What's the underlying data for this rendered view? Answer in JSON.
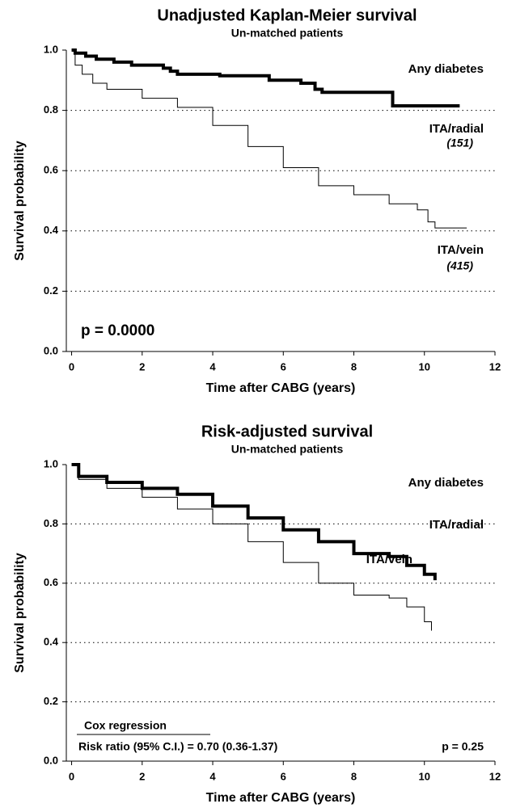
{
  "chart_data": [
    {
      "type": "line",
      "title": "Unadjusted Kaplan-Meier survival",
      "subtitle": "Un-matched patients",
      "x_label": "Time after CABG (years)",
      "y_label": "Survival probability",
      "xlim": [
        -0.15,
        12
      ],
      "xticks": [
        0,
        2,
        4,
        6,
        8,
        10,
        12
      ],
      "ylim": [
        0,
        1
      ],
      "yticks": [
        {
          "value": 0,
          "label": "0.0"
        },
        0.2,
        0.4,
        0.6,
        0.8,
        {
          "value": 1,
          "label": "1.0"
        }
      ],
      "grid": true,
      "step": true,
      "series": [
        {
          "name": "ITA/radial",
          "color": "#000000",
          "width": 4,
          "x": [
            0,
            0.1,
            0.4,
            0.7,
            1.2,
            1.7,
            2.6,
            2.8,
            3.0,
            4.2,
            5.6,
            6.5,
            6.9,
            7.1,
            9.1,
            11
          ],
          "values": [
            1.0,
            0.99,
            0.98,
            0.97,
            0.96,
            0.95,
            0.94,
            0.93,
            0.92,
            0.915,
            0.9,
            0.89,
            0.87,
            0.86,
            0.815,
            0.815
          ]
        },
        {
          "name": "ITA/vein",
          "color": "#000000",
          "width": 1,
          "x": [
            0,
            0.1,
            0.3,
            0.6,
            1,
            2,
            3,
            4,
            5,
            6,
            7,
            8,
            9,
            9.8,
            10.1,
            10.3,
            11.2
          ],
          "values": [
            1.0,
            0.95,
            0.92,
            0.89,
            0.87,
            0.84,
            0.81,
            0.75,
            0.68,
            0.61,
            0.55,
            0.52,
            0.49,
            0.47,
            0.43,
            0.41,
            0.41
          ]
        }
      ],
      "annotations": [
        "Any diabetes",
        "(151)",
        "(415)",
        "p = 0.0000"
      ]
    },
    {
      "type": "line",
      "title": "Risk-adjusted survival",
      "subtitle": "Un-matched patients",
      "x_label": "Time after CABG (years)",
      "y_label": "Survival probability",
      "xlim": [
        -0.15,
        12
      ],
      "xticks": [
        0,
        2,
        4,
        6,
        8,
        10,
        12
      ],
      "ylim": [
        0,
        1
      ],
      "yticks": [
        {
          "value": 0,
          "label": "0.0"
        },
        0.2,
        0.4,
        0.6,
        0.8,
        {
          "value": 1,
          "label": "1.0"
        }
      ],
      "grid": true,
      "step": true,
      "series": [
        {
          "name": "ITA/radial",
          "color": "#000000",
          "width": 4,
          "x": [
            0,
            0.2,
            1,
            2,
            3,
            4,
            5,
            6,
            7,
            8,
            9,
            9.5,
            10,
            10.3
          ],
          "values": [
            1.0,
            0.96,
            0.94,
            0.92,
            0.9,
            0.86,
            0.82,
            0.78,
            0.74,
            0.7,
            0.69,
            0.66,
            0.63,
            0.61
          ]
        },
        {
          "name": "ITA/vein",
          "color": "#000000",
          "width": 1,
          "x": [
            0,
            0.2,
            1,
            2,
            3,
            4,
            5,
            6,
            7,
            8,
            9,
            9.5,
            10,
            10.2
          ],
          "values": [
            1.0,
            0.95,
            0.92,
            0.89,
            0.85,
            0.8,
            0.74,
            0.67,
            0.6,
            0.56,
            0.55,
            0.52,
            0.47,
            0.44
          ]
        }
      ],
      "annotations": [
        "Any diabetes",
        "Cox regression",
        "Risk ratio (95% C.I.) = 0.70 (0.36-1.37)",
        "p = 0.25"
      ]
    }
  ]
}
